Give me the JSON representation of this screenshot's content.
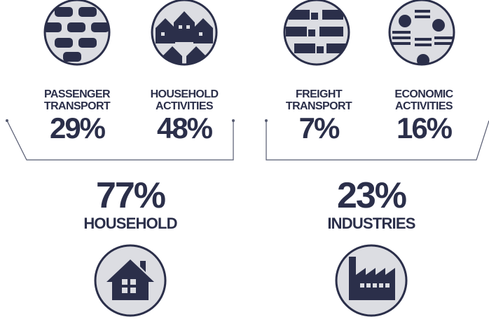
{
  "items": [
    {
      "line1": "PASSENGER",
      "line2": "TRANSPORT",
      "value": "29%"
    },
    {
      "line1": "HOUSEHOLD",
      "line2": "ACTIVITIES",
      "value": "48%"
    },
    {
      "line1": "FREIGHT",
      "line2": "TRANSPORT",
      "value": "7%"
    },
    {
      "line1": "ECONOMIC",
      "line2": "ACTIVITIES",
      "value": "16%"
    }
  ],
  "groups": [
    {
      "value": "77%",
      "label": "HOUSEHOLD"
    },
    {
      "value": "23%",
      "label": "INDUSTRIES"
    }
  ]
}
